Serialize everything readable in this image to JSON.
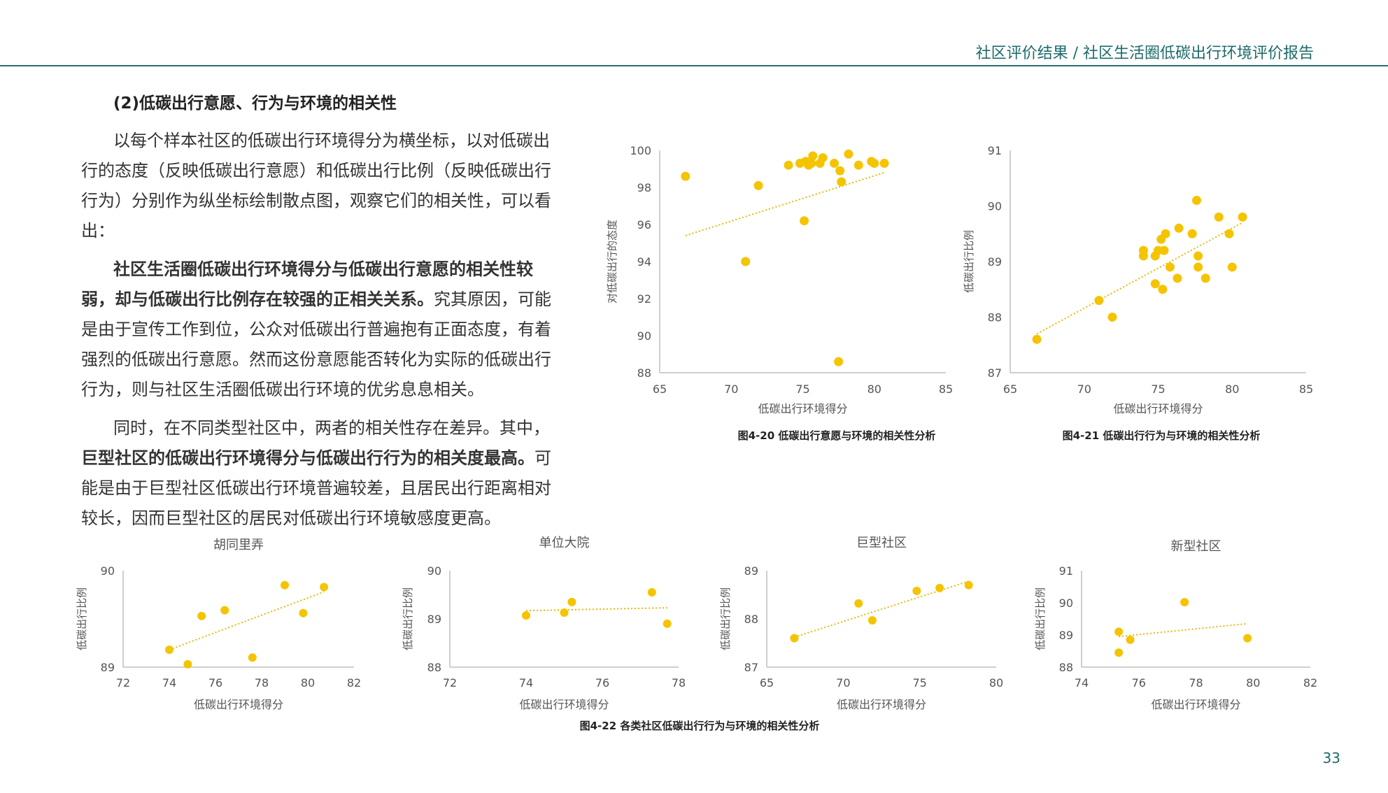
{
  "header": {
    "text": "社区评价结果 / 社区生活圈低碳出行环境评价报告"
  },
  "section_title": "(2)低碳出行意愿、行为与环境的相关性",
  "paragraphs": {
    "p1": "以每个样本社区的低碳出行环境得分为横坐标，以对低碳出行的态度（反映低碳出行意愿）和低碳出行比例（反映低碳出行行为）分别作为纵坐标绘制散点图，观察它们的相关性，可以看出：",
    "p2_bold": "社区生活圈低碳出行环境得分与低碳出行意愿的相关性较弱，却与低碳出行比例存在较强的正相关关系。",
    "p2_rest": "究其原因，可能是由于宣传工作到位，公众对低碳出行普遍抱有正面态度，有着强烈的低碳出行意愿。然而这份意愿能否转化为实际的低碳出行行为，则与社区生活圈低碳出行环境的优劣息息相关。",
    "p3_start": "同时，在不同类型社区中，两者的相关性存在差异。其中，",
    "p3_bold": "巨型社区的低碳出行环境得分与低碳出行行为的相关度最高。",
    "p3_rest": "可能是由于巨型社区低碳出行环境普遍较差，且居民出行距离相对较长，因而巨型社区的居民对低碳出行环境敏感度更高。"
  },
  "captions": {
    "fig20": "图4-20 低碳出行意愿与环境的相关性分析",
    "fig21": "图4-21 低碳出行行为与环境的相关性分析",
    "fig22": "图4-22 各类社区低碳出行行为与环境的相关性分析"
  },
  "page_number": "33",
  "colors": {
    "point": "#f5c400",
    "trend": "#e8b800",
    "axis": "#bfbfbf",
    "accent": "#1e6b6b"
  },
  "chart_data": [
    {
      "id": "fig20",
      "type": "scatter",
      "title": "",
      "xlabel": "低碳出行环境得分",
      "ylabel": "对低碳出行的态度",
      "xlim": [
        65,
        85
      ],
      "ylim": [
        88,
        100
      ],
      "xticks": [
        65,
        70,
        75,
        80,
        85
      ],
      "yticks": [
        88,
        90,
        92,
        94,
        96,
        98,
        100
      ],
      "points": [
        [
          66.8,
          98.6
        ],
        [
          71,
          94
        ],
        [
          71.9,
          98.1
        ],
        [
          74,
          99.2
        ],
        [
          74.8,
          99.3
        ],
        [
          75.2,
          99.4
        ],
        [
          75.4,
          99.2
        ],
        [
          75.6,
          99.3
        ],
        [
          75.7,
          99.7
        ],
        [
          75.1,
          96.2
        ],
        [
          76.2,
          99.3
        ],
        [
          76.4,
          99.6
        ],
        [
          77.2,
          99.3
        ],
        [
          77.5,
          88.6
        ],
        [
          77.6,
          98.9
        ],
        [
          77.7,
          98.3
        ],
        [
          78.2,
          99.8
        ],
        [
          78.9,
          99.2
        ],
        [
          79.8,
          99.4
        ],
        [
          80,
          99.3
        ],
        [
          80.7,
          99.3
        ]
      ],
      "trend": [
        [
          66.8,
          95.4
        ],
        [
          80.7,
          98.8
        ]
      ],
      "grid": false,
      "legend": "none"
    },
    {
      "id": "fig21",
      "type": "scatter",
      "title": "",
      "xlabel": "低碳出行环境得分",
      "ylabel": "低碳出行比例",
      "xlim": [
        65,
        85
      ],
      "ylim": [
        87,
        91
      ],
      "xticks": [
        65,
        70,
        75,
        80,
        85
      ],
      "yticks": [
        87,
        88,
        89,
        90,
        91
      ],
      "points": [
        [
          66.8,
          87.6
        ],
        [
          71,
          88.3
        ],
        [
          71.9,
          88
        ],
        [
          74,
          89.2
        ],
        [
          74,
          89.1
        ],
        [
          74.8,
          89.1
        ],
        [
          74.8,
          88.6
        ],
        [
          75,
          89.2
        ],
        [
          75.2,
          89.4
        ],
        [
          75.3,
          88.5
        ],
        [
          75.4,
          89.2
        ],
        [
          75.5,
          89.5
        ],
        [
          75.8,
          88.9
        ],
        [
          76.3,
          88.7
        ],
        [
          76.4,
          89.6
        ],
        [
          77.3,
          89.5
        ],
        [
          77.6,
          90.1
        ],
        [
          77.7,
          89.1
        ],
        [
          77.7,
          88.9
        ],
        [
          78.2,
          88.7
        ],
        [
          79.1,
          89.8
        ],
        [
          79.8,
          89.5
        ],
        [
          80,
          88.9
        ],
        [
          80.7,
          89.8
        ]
      ],
      "trend": [
        [
          66.8,
          87.7
        ],
        [
          80.7,
          89.7
        ]
      ],
      "grid": false,
      "legend": "none"
    },
    {
      "id": "hutong",
      "type": "scatter",
      "title": "胡同里弄",
      "xlabel": "低碳出行环境得分",
      "ylabel": "低碳出行比例",
      "xlim": [
        72,
        82
      ],
      "ylim": [
        89,
        90
      ],
      "xticks": [
        72,
        74,
        76,
        78,
        80,
        82
      ],
      "yticks": [
        89,
        90
      ],
      "points": [
        [
          74,
          89.18
        ],
        [
          74.8,
          89.03
        ],
        [
          75.4,
          89.53
        ],
        [
          76.4,
          89.59
        ],
        [
          77.6,
          89.1
        ],
        [
          79,
          89.85
        ],
        [
          79.8,
          89.56
        ],
        [
          80.7,
          89.83
        ]
      ],
      "trend": [
        [
          74,
          89.18
        ],
        [
          80.7,
          89.78
        ]
      ],
      "grid": false,
      "legend": "none"
    },
    {
      "id": "danwei",
      "type": "scatter",
      "title": "单位大院",
      "xlabel": "低碳出行环境得分",
      "ylabel": "低碳出行比例",
      "xlim": [
        72,
        78
      ],
      "ylim": [
        88,
        90
      ],
      "xticks": [
        72,
        74,
        76,
        78
      ],
      "yticks": [
        88,
        89,
        90
      ],
      "points": [
        [
          74,
          89.07
        ],
        [
          75,
          89.13
        ],
        [
          75.2,
          89.35
        ],
        [
          77.3,
          89.55
        ],
        [
          77.7,
          88.9
        ]
      ],
      "trend": [
        [
          74,
          89.17
        ],
        [
          77.7,
          89.23
        ]
      ],
      "grid": false,
      "legend": "none"
    },
    {
      "id": "juxing",
      "type": "scatter",
      "title": "巨型社区",
      "xlabel": "低碳出行环境得分",
      "ylabel": "低碳出行比例",
      "xlim": [
        65,
        80
      ],
      "ylim": [
        87,
        89
      ],
      "xticks": [
        65,
        70,
        75,
        80
      ],
      "yticks": [
        87,
        88,
        89
      ],
      "points": [
        [
          66.8,
          87.6
        ],
        [
          71,
          88.32
        ],
        [
          71.9,
          87.97
        ],
        [
          74.8,
          88.58
        ],
        [
          76.3,
          88.64
        ],
        [
          78.2,
          88.7
        ]
      ],
      "trend": [
        [
          66.8,
          87.62
        ],
        [
          78.2,
          88.78
        ]
      ],
      "grid": false,
      "legend": "none"
    },
    {
      "id": "xinxing",
      "type": "scatter",
      "title": "新型社区",
      "xlabel": "低碳出行环境得分",
      "ylabel": "低碳出行比例",
      "xlim": [
        74,
        82
      ],
      "ylim": [
        88,
        91
      ],
      "xticks": [
        74,
        76,
        78,
        80,
        82
      ],
      "yticks": [
        88,
        89,
        90,
        91
      ],
      "points": [
        [
          75.3,
          89.1
        ],
        [
          75.3,
          88.45
        ],
        [
          75.7,
          88.85
        ],
        [
          77.6,
          90.02
        ],
        [
          79.8,
          88.9
        ]
      ],
      "trend": [
        [
          75.3,
          88.95
        ],
        [
          79.8,
          89.35
        ]
      ],
      "grid": false,
      "legend": "none"
    }
  ]
}
